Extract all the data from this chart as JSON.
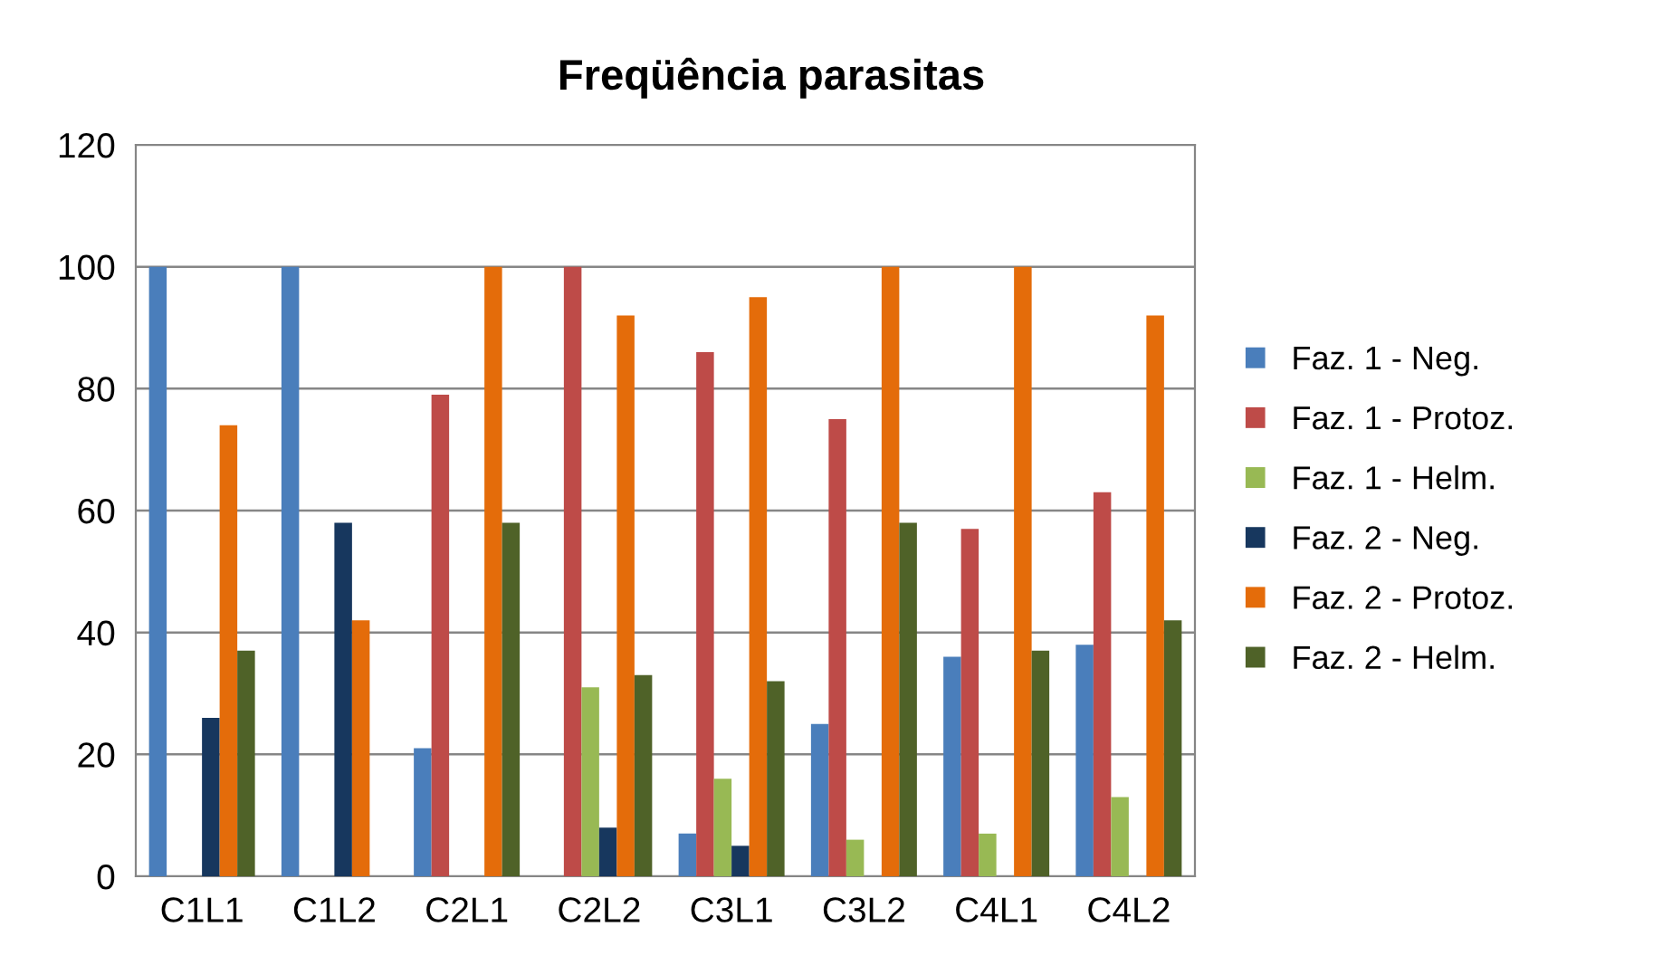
{
  "chart_data": {
    "type": "bar",
    "title": "Freqüência parasitas",
    "categories": [
      "C1L1",
      "C1L2",
      "C2L1",
      "C2L2",
      "C3L1",
      "C3L2",
      "C4L1",
      "C4L2"
    ],
    "series": [
      {
        "name": "Faz. 1 - Neg.",
        "color": "#4a7ebb",
        "values": [
          100,
          100,
          21,
          0,
          7,
          25,
          36,
          38
        ]
      },
      {
        "name": "Faz. 1 - Protoz.",
        "color": "#be4b48",
        "values": [
          0,
          0,
          79,
          100,
          86,
          75,
          57,
          63
        ]
      },
      {
        "name": "Faz. 1 - Helm.",
        "color": "#98b954",
        "values": [
          0,
          0,
          0,
          31,
          16,
          6,
          7,
          13
        ]
      },
      {
        "name": "Faz. 2 - Neg.",
        "color": "#17375e",
        "values": [
          26,
          58,
          0,
          8,
          5,
          0,
          0,
          0
        ]
      },
      {
        "name": "Faz. 2 - Protoz.",
        "color": "#e46c0a",
        "values": [
          74,
          42,
          100,
          92,
          95,
          100,
          100,
          92
        ]
      },
      {
        "name": "Faz. 2 - Helm.",
        "color": "#4f6228",
        "values": [
          37,
          0,
          58,
          33,
          32,
          58,
          37,
          42
        ]
      }
    ],
    "ylim": [
      0,
      120
    ],
    "yticks": [
      0,
      20,
      40,
      60,
      80,
      100,
      120
    ],
    "grid": "y",
    "legend": "right"
  }
}
